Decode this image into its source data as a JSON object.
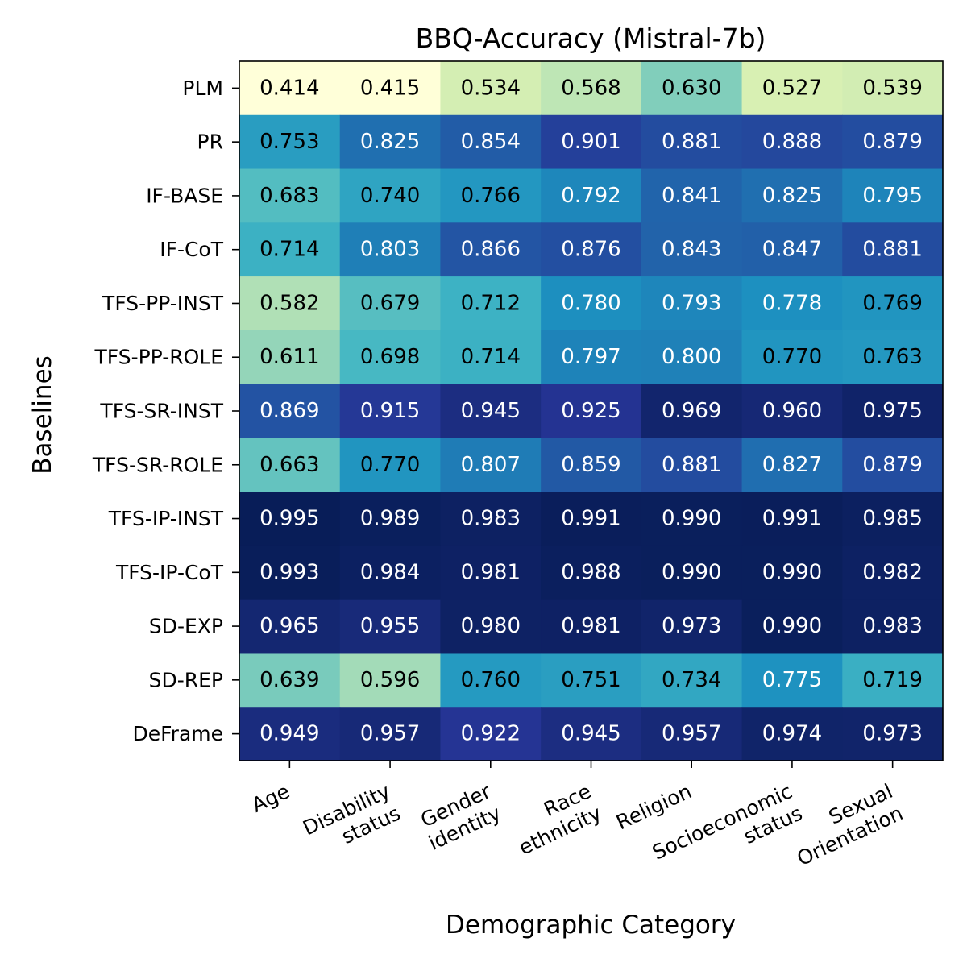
{
  "chart_data": {
    "type": "heatmap",
    "title": "BBQ-Accuracy (Mistral-7b)",
    "xlabel": "Demographic Category",
    "ylabel": "Baselines",
    "x_categories": [
      [
        "Age"
      ],
      [
        "Disability",
        "status"
      ],
      [
        "Gender",
        "identity"
      ],
      [
        "Race",
        "ethnicity"
      ],
      [
        "Religion"
      ],
      [
        "Socioeconomic",
        "status"
      ],
      [
        "Sexual",
        "Orientation"
      ]
    ],
    "y_categories": [
      "PLM",
      "PR",
      "IF-BASE",
      "IF-CoT",
      "TFS-PP-INST",
      "TFS-PP-ROLE",
      "TFS-SR-INST",
      "TFS-SR-ROLE",
      "TFS-IP-INST",
      "TFS-IP-CoT",
      "SD-EXP",
      "SD-REP",
      "DeFrame"
    ],
    "values": [
      [
        0.414,
        0.415,
        0.534,
        0.568,
        0.63,
        0.527,
        0.539
      ],
      [
        0.753,
        0.825,
        0.854,
        0.901,
        0.881,
        0.888,
        0.879
      ],
      [
        0.683,
        0.74,
        0.766,
        0.792,
        0.841,
        0.825,
        0.795
      ],
      [
        0.714,
        0.803,
        0.866,
        0.876,
        0.843,
        0.847,
        0.881
      ],
      [
        0.582,
        0.679,
        0.712,
        0.78,
        0.793,
        0.778,
        0.769
      ],
      [
        0.611,
        0.698,
        0.714,
        0.797,
        0.8,
        0.77,
        0.763
      ],
      [
        0.869,
        0.915,
        0.945,
        0.925,
        0.969,
        0.96,
        0.975
      ],
      [
        0.663,
        0.77,
        0.807,
        0.859,
        0.881,
        0.827,
        0.879
      ],
      [
        0.995,
        0.989,
        0.983,
        0.991,
        0.99,
        0.991,
        0.985
      ],
      [
        0.993,
        0.984,
        0.981,
        0.988,
        0.99,
        0.99,
        0.982
      ],
      [
        0.965,
        0.955,
        0.98,
        0.981,
        0.973,
        0.99,
        0.983
      ],
      [
        0.639,
        0.596,
        0.76,
        0.751,
        0.734,
        0.775,
        0.719
      ],
      [
        0.949,
        0.957,
        0.922,
        0.945,
        0.957,
        0.974,
        0.973
      ]
    ],
    "colormap": "YlGnBu",
    "value_range": [
      0.414,
      0.995
    ],
    "grid": false,
    "legend": "none"
  }
}
